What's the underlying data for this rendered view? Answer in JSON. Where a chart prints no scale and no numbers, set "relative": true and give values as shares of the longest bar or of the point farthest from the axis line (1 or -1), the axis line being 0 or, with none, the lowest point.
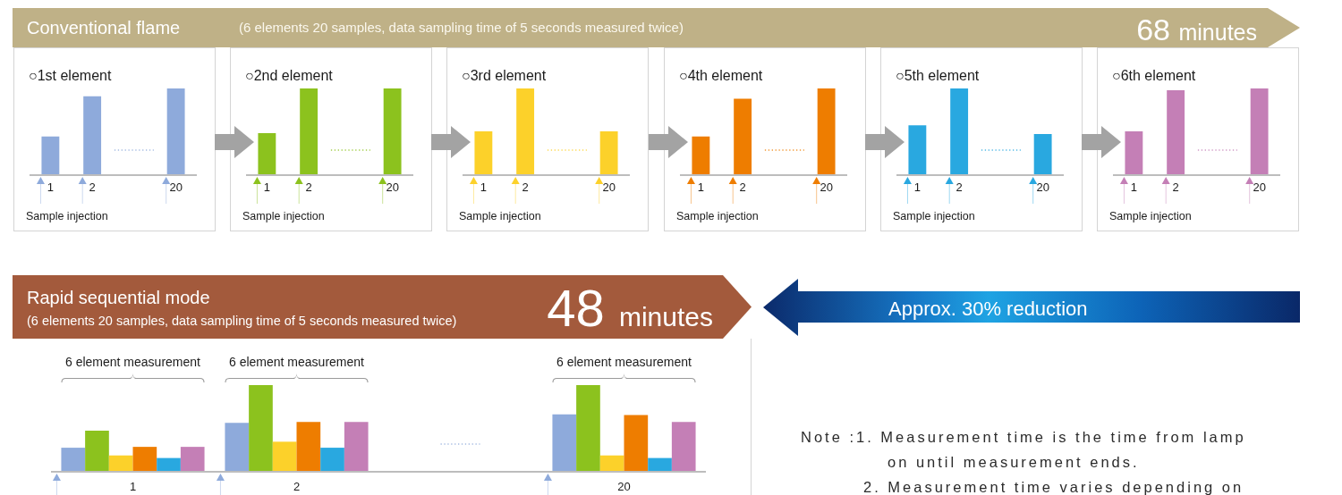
{
  "chart_data": [
    {
      "type": "other",
      "title": "Conventional flame",
      "subtitle": "(6 elements 20 samples, data sampling time of 5 seconds measured twice)",
      "annotations": [
        "68 minutes"
      ]
    },
    {
      "type": "bar",
      "title": "○1st element",
      "xlabel": "Sample injection",
      "categories": [
        "1",
        "2",
        null,
        "20"
      ],
      "values": [
        0.44,
        0.91,
        null,
        1
      ],
      "color": "#8eaadb",
      "relative": true
    },
    {
      "type": "bar",
      "title": "○2nd element",
      "xlabel": "Sample injection",
      "categories": [
        "1",
        "2",
        null,
        "20"
      ],
      "values": [
        0.48,
        1,
        null,
        1
      ],
      "color": "#8cc21e",
      "relative": true
    },
    {
      "type": "bar",
      "title": "○3rd element",
      "xlabel": "Sample injection",
      "categories": [
        "1",
        "2",
        null,
        "20"
      ],
      "values": [
        0.5,
        1,
        null,
        0.5
      ],
      "color": "#fcd12a",
      "relative": true
    },
    {
      "type": "bar",
      "title": "○4th element",
      "xlabel": "Sample injection",
      "categories": [
        "1",
        "2",
        null,
        "20"
      ],
      "values": [
        0.44,
        0.88,
        null,
        1
      ],
      "color": "#ee7d00",
      "relative": true
    },
    {
      "type": "bar",
      "title": "○5th element",
      "xlabel": "Sample injection",
      "categories": [
        "1",
        "2",
        null,
        "20"
      ],
      "values": [
        0.57,
        1,
        null,
        0.47
      ],
      "color": "#29a8e0",
      "relative": true
    },
    {
      "type": "bar",
      "title": "○6th element",
      "xlabel": "Sample injection",
      "categories": [
        "1",
        "2",
        null,
        "20"
      ],
      "values": [
        0.5,
        0.98,
        null,
        1
      ],
      "color": "#c47fb6",
      "relative": true
    },
    {
      "type": "other",
      "title": "Rapid sequential mode",
      "subtitle": "(6 elements 20 samples, data sampling time of 5 seconds measured twice)",
      "annotations": [
        "48 minutes"
      ]
    },
    {
      "type": "bar",
      "categories": [
        "1",
        "2",
        null,
        "20"
      ],
      "relative": true,
      "annotations": [
        "6 element measurement",
        "6 element measurement",
        "6 element measurement"
      ],
      "series": [
        {
          "color": "#8eaadb",
          "values": [
            0.27,
            0.56,
            null,
            0.66
          ]
        },
        {
          "color": "#8cc21e",
          "values": [
            0.47,
            1,
            null,
            1
          ]
        },
        {
          "color": "#fcd12a",
          "values": [
            0.18,
            0.34,
            null,
            0.18
          ]
        },
        {
          "color": "#ee7d00",
          "values": [
            0.28,
            0.57,
            null,
            0.65
          ]
        },
        {
          "color": "#29a8e0",
          "values": [
            0.15,
            0.27,
            null,
            0.15
          ]
        },
        {
          "color": "#c47fb6",
          "values": [
            0.28,
            0.57,
            null,
            0.57
          ]
        }
      ]
    },
    {
      "type": "other",
      "title": "Approx. 30% reduction",
      "annotations": [
        "Note :1. Measurement time is the time from lamp on until measurement ends.",
        "2. Measurement time varies depending on"
      ]
    }
  ]
}
